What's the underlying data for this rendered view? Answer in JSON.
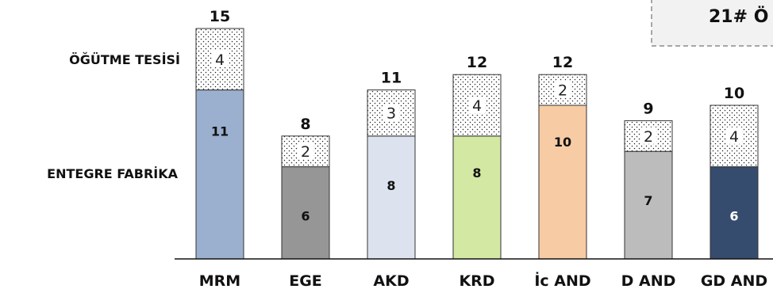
{
  "annotation_text": "21# Ö",
  "row_labels": {
    "top": "ÖĞÜTME TESİSİ",
    "bottom": "ENTEGRE FABRİKA"
  },
  "chart_data": {
    "type": "bar",
    "stacked": true,
    "categories": [
      "MRM",
      "EGE",
      "AKD",
      "KRD",
      "İc AND",
      "D AND",
      "GD AND"
    ],
    "series": [
      {
        "name": "ENTEGRE FABRİKA",
        "values": [
          11,
          6,
          8,
          8,
          10,
          7,
          6
        ]
      },
      {
        "name": "ÖĞÜTME TESİSİ",
        "values": [
          4,
          2,
          3,
          4,
          2,
          2,
          4
        ]
      }
    ],
    "totals": [
      15,
      8,
      11,
      12,
      12,
      9,
      10
    ],
    "colors": [
      "#9bafcf",
      "#969696",
      "#dde3ee",
      "#d3e9a3",
      "#f7cba4",
      "#bcbcbc",
      "#364c6e"
    ],
    "bottom_label_colors": [
      "#111111",
      "#111111",
      "#111111",
      "#111111",
      "#111111",
      "#111111",
      "#ffffff"
    ],
    "ylim": [
      0,
      16
    ]
  }
}
